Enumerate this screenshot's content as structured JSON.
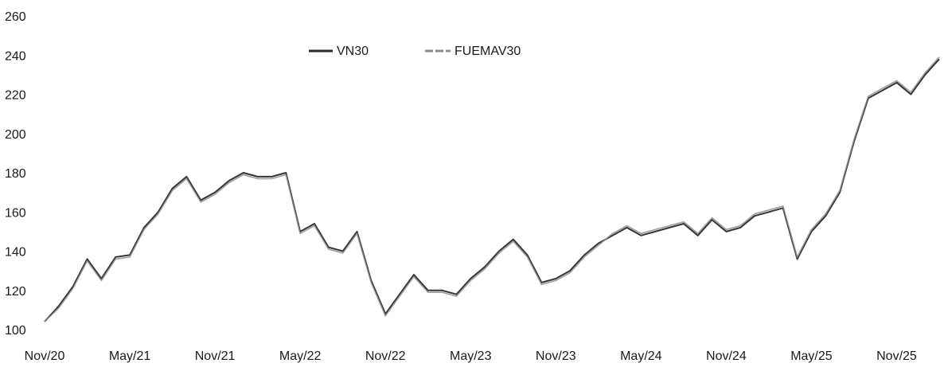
{
  "chart_data": {
    "type": "line",
    "title": "",
    "xlabel": "",
    "ylabel": "",
    "ylim": [
      100,
      260
    ],
    "yticks": [
      100,
      120,
      140,
      160,
      180,
      200,
      220,
      240,
      260
    ],
    "xlim": [
      "2020-11",
      "2026-02"
    ],
    "xticks": [
      "Nov/20",
      "May/21",
      "Nov/21",
      "May/22",
      "Nov/22",
      "May/23",
      "Nov/23",
      "May/24",
      "Nov/24",
      "May/25",
      "Nov/25"
    ],
    "grid": false,
    "legend_position": "top-center",
    "x": [
      "2020-11",
      "2020-12",
      "2021-01",
      "2021-02",
      "2021-03",
      "2021-04",
      "2021-05",
      "2021-06",
      "2021-07",
      "2021-08",
      "2021-09",
      "2021-10",
      "2021-11",
      "2021-12",
      "2022-01",
      "2022-02",
      "2022-03",
      "2022-04",
      "2022-05",
      "2022-06",
      "2022-07",
      "2022-08",
      "2022-09",
      "2022-10",
      "2022-11",
      "2022-12",
      "2023-01",
      "2023-02",
      "2023-03",
      "2023-04",
      "2023-05",
      "2023-06",
      "2023-07",
      "2023-08",
      "2023-09",
      "2023-10",
      "2023-11",
      "2023-12",
      "2024-01",
      "2024-02",
      "2024-03",
      "2024-04",
      "2024-05",
      "2024-06",
      "2024-07",
      "2024-08",
      "2024-09",
      "2024-10",
      "2024-11",
      "2024-12",
      "2025-01",
      "2025-02",
      "2025-03",
      "2025-04",
      "2025-05",
      "2025-06",
      "2025-07",
      "2025-08",
      "2025-09",
      "2025-10",
      "2025-11",
      "2025-12",
      "2026-01",
      "2026-02"
    ],
    "series": [
      {
        "name": "VN30",
        "color": "#2a2a2a",
        "values": [
          104,
          112,
          122,
          136,
          126,
          137,
          138,
          152,
          160,
          172,
          178,
          166,
          170,
          176,
          180,
          178,
          178,
          180,
          150,
          154,
          142,
          140,
          150,
          125,
          108,
          118,
          128,
          120,
          120,
          118,
          126,
          132,
          140,
          146,
          138,
          124,
          126,
          130,
          138,
          144,
          148,
          152,
          148,
          150,
          152,
          154,
          148,
          156,
          150,
          152,
          158,
          160,
          162,
          136,
          150,
          158,
          170,
          196,
          218,
          222,
          226,
          220,
          230,
          238
        ]
      },
      {
        "name": "FUEMAV30",
        "color": "#8c8c8c",
        "values": [
          104,
          111,
          121,
          135,
          125,
          136,
          137,
          151,
          159,
          171,
          177,
          165,
          169,
          175,
          179,
          177,
          177,
          179,
          149,
          153,
          141,
          139,
          149,
          124,
          107,
          117,
          127,
          119,
          119,
          117,
          125,
          131,
          139,
          145,
          137,
          123,
          125,
          129,
          137,
          143,
          149,
          153,
          149,
          151,
          153,
          155,
          149,
          157,
          151,
          153,
          159,
          161,
          163,
          137,
          151,
          159,
          171,
          197,
          219,
          223,
          227,
          221,
          231,
          239
        ]
      }
    ]
  }
}
